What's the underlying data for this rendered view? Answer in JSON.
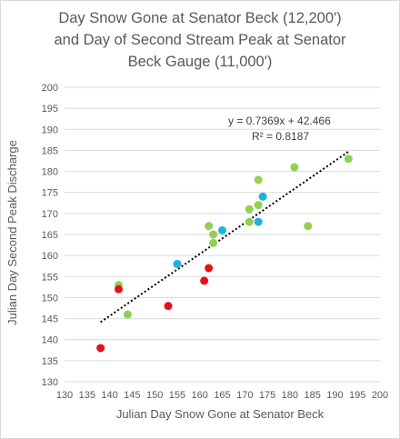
{
  "chart_data": {
    "type": "scatter",
    "title_lines": [
      "Day Snow Gone at Senator Beck (12,200')",
      "and Day of Second Stream Peak at Senator",
      "Beck Gauge (11,000')"
    ],
    "xlabel": "Julian Day Snow Gone at Senator Beck",
    "ylabel": "Julian Day Second Peak Discharge",
    "xlim": [
      130,
      200
    ],
    "ylim": [
      130,
      200
    ],
    "xticks": [
      "130",
      "135",
      "140",
      "145",
      "150",
      "155",
      "160",
      "165",
      "170",
      "175",
      "180",
      "185",
      "190",
      "195",
      "200"
    ],
    "yticks": [
      "130",
      "135",
      "140",
      "145",
      "150",
      "155",
      "160",
      "165",
      "170",
      "175",
      "180",
      "185",
      "190",
      "195",
      "200"
    ],
    "grid": "horizontal",
    "series": [
      {
        "color": "#92d050",
        "points": [
          {
            "x": 142,
            "y": 153
          },
          {
            "x": 144,
            "y": 146
          },
          {
            "x": 162,
            "y": 167
          },
          {
            "x": 163,
            "y": 165
          },
          {
            "x": 163,
            "y": 163
          },
          {
            "x": 171,
            "y": 171
          },
          {
            "x": 171,
            "y": 168
          },
          {
            "x": 173,
            "y": 172
          },
          {
            "x": 173,
            "y": 178
          },
          {
            "x": 181,
            "y": 181
          },
          {
            "x": 184,
            "y": 167
          },
          {
            "x": 193,
            "y": 183
          }
        ]
      },
      {
        "color": "#1fb1e0",
        "points": [
          {
            "x": 155,
            "y": 158
          },
          {
            "x": 165,
            "y": 166
          },
          {
            "x": 173,
            "y": 168
          },
          {
            "x": 174,
            "y": 174
          }
        ]
      },
      {
        "color": "#e3121a",
        "points": [
          {
            "x": 138,
            "y": 138
          },
          {
            "x": 142,
            "y": 152
          },
          {
            "x": 153,
            "y": 148
          },
          {
            "x": 161,
            "y": 154
          },
          {
            "x": 162,
            "y": 157
          }
        ]
      }
    ],
    "trendline": {
      "type": "linear",
      "slope": 0.7369,
      "intercept": 42.466,
      "x_range": [
        138,
        193
      ],
      "equation": "y = 0.7369x + 42.466",
      "r_squared": "R² = 0.8187"
    }
  }
}
